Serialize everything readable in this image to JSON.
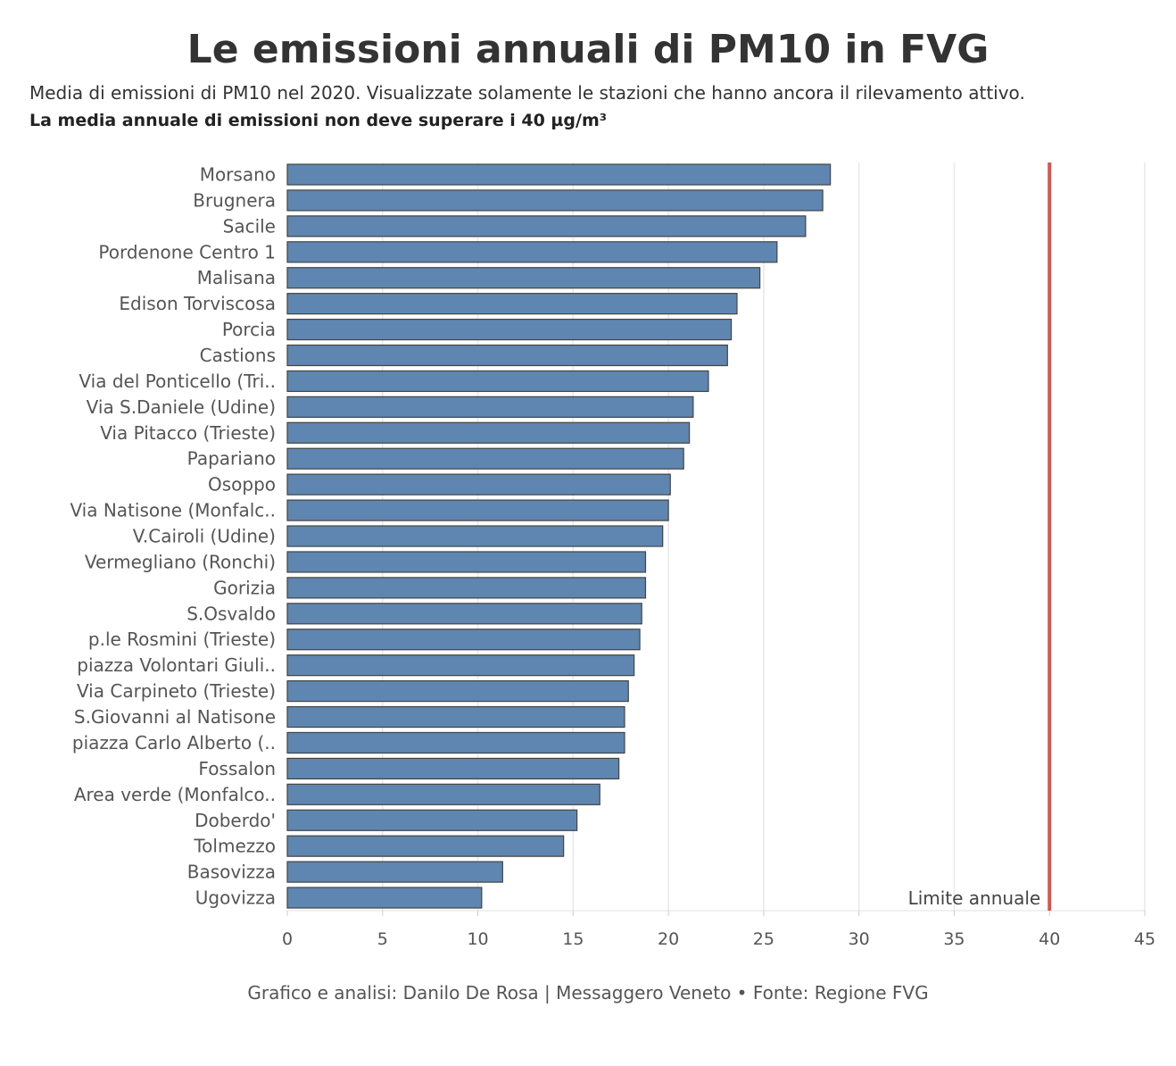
{
  "header": {
    "title": "Le emissioni annuali di PM10 in FVG",
    "subtitle": "Media di emissioni di PM10 nel 2020. Visualizzate solamente le stazioni che hanno ancora il rilevamento attivo.",
    "subtitle_bold": "La media annuale di emissioni non deve superare i 40 µg/m³"
  },
  "footer": {
    "credit": "Grafico e analisi: Danilo De Rosa | Messaggero Veneto • Fonte: Regione FVG"
  },
  "colors": {
    "bar": "#5e86b0",
    "bar_stroke": "#444444",
    "limit_line": "#d9534f",
    "grid": "#e8e8e8"
  },
  "chart_data": {
    "type": "bar",
    "orientation": "horizontal",
    "title": "Le emissioni annuali di PM10 in FVG",
    "xlabel": "",
    "ylabel": "",
    "xlim": [
      0,
      45
    ],
    "xticks": [
      0,
      5,
      10,
      15,
      20,
      25,
      30,
      35,
      40,
      45
    ],
    "grid": true,
    "categories": [
      "Morsano",
      "Brugnera",
      "Sacile",
      "Pordenone Centro 1",
      "Malisana",
      "Edison Torviscosa",
      "Porcia",
      "Castions",
      "Via del Ponticello (Tri..",
      "Via S.Daniele (Udine)",
      "Via Pitacco (Trieste)",
      "Papariano",
      "Osoppo",
      "Via Natisone (Monfalc..",
      "V.Cairoli (Udine)",
      "Vermegliano (Ronchi)",
      "Gorizia",
      "S.Osvaldo",
      "p.le Rosmini (Trieste)",
      "piazza Volontari Giuli..",
      "Via Carpineto (Trieste)",
      "S.Giovanni al Natisone",
      "piazza Carlo Alberto (..",
      "Fossalon",
      "Area verde (Monfalco..",
      "Doberdo'",
      "Tolmezzo",
      "Basovizza",
      "Ugovizza"
    ],
    "values": [
      28.5,
      28.1,
      27.2,
      25.7,
      24.8,
      23.6,
      23.3,
      23.1,
      22.1,
      21.3,
      21.1,
      20.8,
      20.1,
      20.0,
      19.7,
      18.8,
      18.8,
      18.6,
      18.5,
      18.2,
      17.9,
      17.7,
      17.7,
      17.4,
      16.4,
      15.2,
      14.5,
      11.3,
      10.2
    ],
    "reference_line": {
      "value": 40,
      "label": "Limite annuale"
    }
  }
}
